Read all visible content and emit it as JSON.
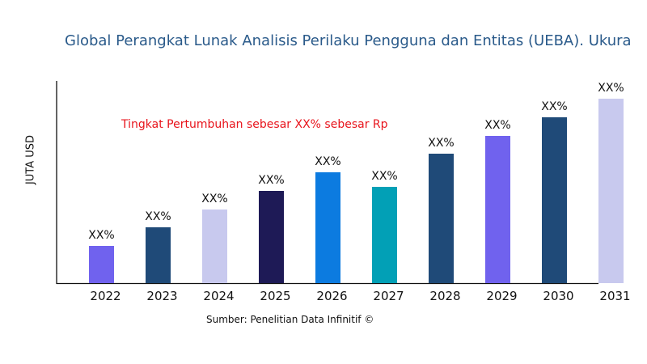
{
  "chart_data": {
    "type": "bar",
    "title": "Global Perangkat Lunak Analisis Perilaku Pengguna dan Entitas (UEBA). Ukura",
    "ylabel": "JUTA USD",
    "xlabel": "",
    "categories": [
      "2022",
      "2023",
      "2024",
      "2025",
      "2026",
      "2027",
      "2028",
      "2029",
      "2030",
      "2031"
    ],
    "values": [
      46,
      69,
      91,
      114,
      137,
      119,
      160,
      182,
      205,
      228
    ],
    "data_labels": [
      "XX%",
      "XX%",
      "XX%",
      "XX%",
      "XX%",
      "XX%",
      "XX%",
      "XX%",
      "XX%",
      "XX%"
    ],
    "colors": [
      "#7062ee",
      "#1f4a78",
      "#c8c9ee",
      "#1e1a56",
      "#0c7be0",
      "#02a0b6",
      "#1f4a78",
      "#7062ee",
      "#1f4a78",
      "#c8c9ee"
    ],
    "ylim": [
      0,
      250
    ],
    "grid": false,
    "annotation": "Tingkat Pertumbuhan sebesar XX% sebesar Rp",
    "source": "Sumber: Penelitian Data Infinitif ©"
  }
}
